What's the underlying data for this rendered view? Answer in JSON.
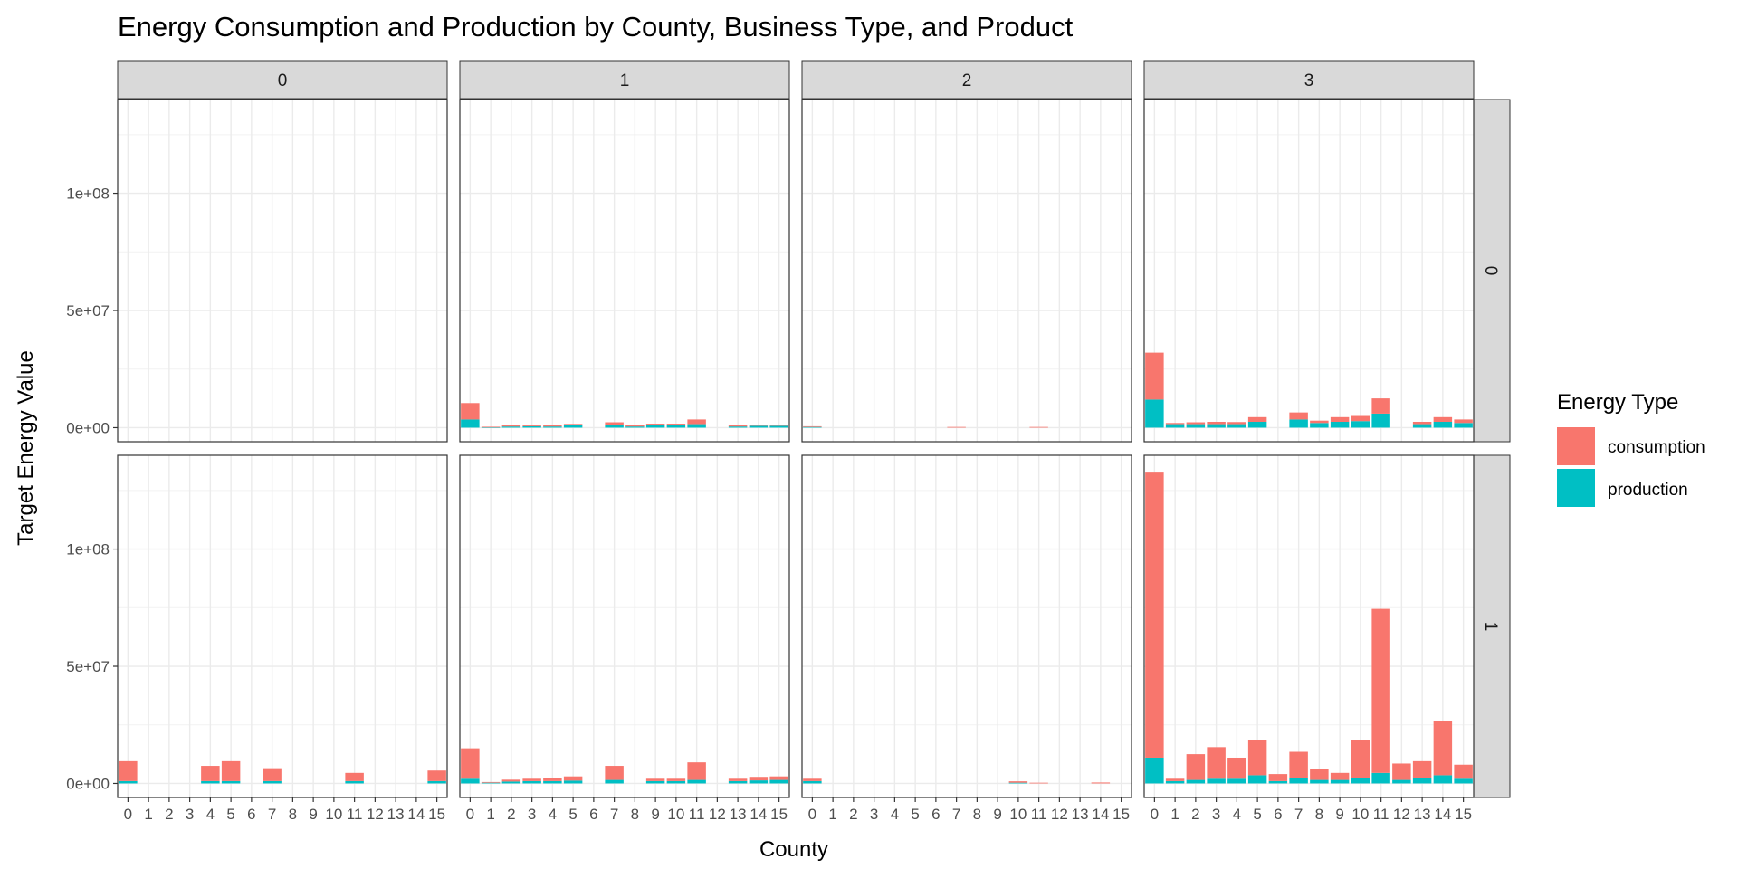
{
  "chart_data": {
    "type": "bar",
    "stacked": true,
    "title": "Energy Consumption and Production by County, Business Type, and Product",
    "xlabel": "County",
    "ylabel": "Target Energy Value",
    "ylim": [
      -6000000,
      140000000
    ],
    "y_ticks": [
      0,
      50000000,
      100000000
    ],
    "y_tick_labels": [
      "0e+00",
      "5e+07",
      "1e+08"
    ],
    "categories": [
      "0",
      "1",
      "2",
      "3",
      "4",
      "5",
      "6",
      "7",
      "8",
      "9",
      "10",
      "11",
      "12",
      "13",
      "14",
      "15"
    ],
    "facet_columns": [
      "0",
      "1",
      "2",
      "3"
    ],
    "facet_rows": [
      "0",
      "1"
    ],
    "series_names": [
      "consumption",
      "production"
    ],
    "series_colors": {
      "consumption": "#F8766D",
      "production": "#00BFC4"
    },
    "legend": {
      "title": "Energy Type",
      "position": "right",
      "items": [
        "consumption",
        "production"
      ]
    },
    "grid": true,
    "panels": [
      {
        "row": "0",
        "col": "0",
        "consumption": [
          0,
          0,
          0,
          0,
          0,
          0,
          0,
          0,
          0,
          0,
          0,
          0,
          0,
          0,
          0,
          0
        ],
        "production": [
          0,
          0,
          0,
          0,
          0,
          0,
          0,
          0,
          0,
          0,
          0,
          0,
          0,
          0,
          0,
          0
        ]
      },
      {
        "row": "0",
        "col": "1",
        "consumption": [
          7000000,
          300000,
          500000,
          700000,
          500000,
          600000,
          0,
          1300000,
          500000,
          700000,
          700000,
          2000000,
          0,
          500000,
          500000,
          500000
        ],
        "production": [
          3500000,
          100000,
          500000,
          600000,
          500000,
          1000000,
          0,
          1000000,
          500000,
          1000000,
          1000000,
          1500000,
          0,
          500000,
          800000,
          800000
        ]
      },
      {
        "row": "0",
        "col": "2",
        "consumption": [
          300000,
          0,
          0,
          0,
          0,
          0,
          0,
          300000,
          0,
          0,
          0,
          300000,
          0,
          0,
          0,
          0
        ],
        "production": [
          300000,
          0,
          0,
          0,
          0,
          0,
          0,
          0,
          0,
          0,
          0,
          0,
          0,
          0,
          0,
          0
        ]
      },
      {
        "row": "0",
        "col": "3",
        "consumption": [
          20000000,
          500000,
          800000,
          1000000,
          900000,
          2000000,
          0,
          3000000,
          1000000,
          2000000,
          2200000,
          6500000,
          0,
          1000000,
          2000000,
          1500000
        ],
        "production": [
          12000000,
          1500000,
          1500000,
          1500000,
          1500000,
          2500000,
          0,
          3500000,
          2000000,
          2500000,
          2800000,
          6000000,
          0,
          1500000,
          2500000,
          2000000
        ]
      },
      {
        "row": "1",
        "col": "0",
        "consumption": [
          8500000,
          0,
          0,
          0,
          6500000,
          8500000,
          0,
          5500000,
          0,
          0,
          0,
          3500000,
          0,
          0,
          0,
          4500000
        ],
        "production": [
          1000000,
          0,
          0,
          0,
          1000000,
          1000000,
          0,
          1000000,
          0,
          0,
          0,
          1000000,
          0,
          0,
          0,
          1000000
        ]
      },
      {
        "row": "1",
        "col": "1",
        "consumption": [
          13000000,
          300000,
          800000,
          1000000,
          1200000,
          1800000,
          0,
          6000000,
          0,
          1000000,
          1000000,
          7500000,
          0,
          1000000,
          1500000,
          1500000
        ],
        "production": [
          2000000,
          300000,
          800000,
          1000000,
          1000000,
          1200000,
          0,
          1500000,
          0,
          1000000,
          1000000,
          1500000,
          0,
          1000000,
          1300000,
          1500000
        ]
      },
      {
        "row": "1",
        "col": "2",
        "consumption": [
          1000000,
          0,
          0,
          0,
          0,
          0,
          0,
          0,
          0,
          0,
          600000,
          300000,
          0,
          0,
          400000,
          0
        ],
        "production": [
          1000000,
          0,
          0,
          0,
          0,
          0,
          0,
          0,
          0,
          0,
          300000,
          0,
          0,
          0,
          0,
          0
        ]
      },
      {
        "row": "1",
        "col": "3",
        "consumption": [
          122000000,
          1000000,
          11000000,
          13500000,
          9000000,
          15000000,
          3000000,
          11000000,
          4500000,
          3000000,
          16000000,
          70000000,
          7000000,
          7000000,
          23000000,
          6000000
        ],
        "production": [
          11000000,
          1000000,
          1500000,
          2000000,
          2000000,
          3500000,
          1000000,
          2500000,
          1500000,
          1500000,
          2500000,
          4500000,
          1500000,
          2500000,
          3500000,
          2000000
        ]
      }
    ]
  }
}
